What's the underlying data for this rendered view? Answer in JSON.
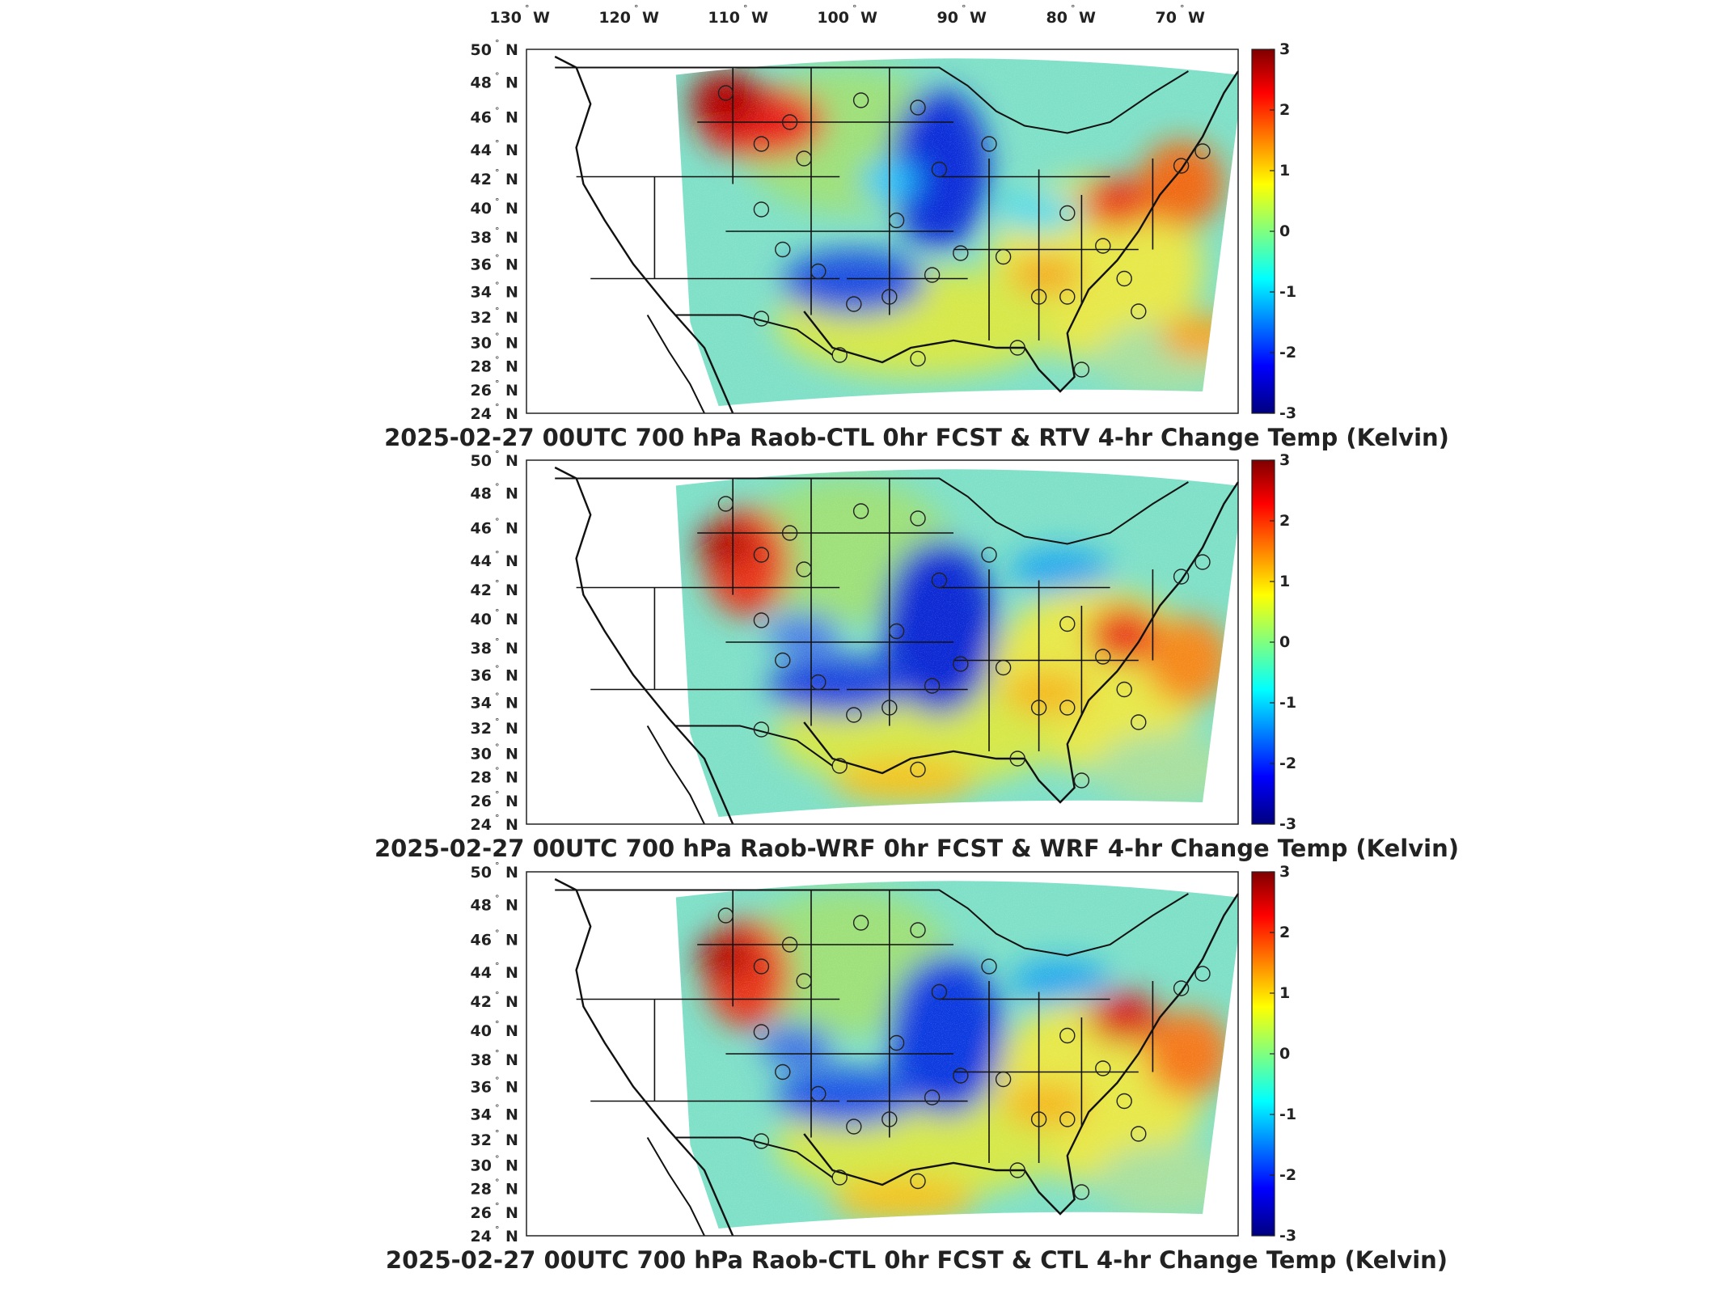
{
  "lon_labels": [
    "130",
    "120",
    "110",
    "100",
    "90",
    "80",
    "70"
  ],
  "lon_hemisphere": "W",
  "lat_labels": [
    "50",
    "48",
    "46",
    "44",
    "42",
    "40",
    "38",
    "36",
    "34",
    "32",
    "30",
    "28",
    "26",
    "24"
  ],
  "lat_hemisphere": "N",
  "degree_symbol": "°",
  "colorbar": {
    "ticks": [
      "3",
      "2",
      "1",
      "0",
      "-1",
      "-2",
      "-3"
    ],
    "colors": [
      "#7f0000",
      "#ff0000",
      "#ffff00",
      "#00ffff",
      "#0000ff",
      "#00007f"
    ]
  },
  "panels": [
    {
      "title": "2025-02-27 00UTC 700 hPa Raob-CTL 0hr FCST & RTV 4-hr Change Temp (Kelvin)",
      "variant": "rtv"
    },
    {
      "title": "2025-02-27 00UTC 700 hPa Raob-WRF 0hr FCST & WRF 4-hr Change Temp (Kelvin)",
      "variant": "wrf"
    },
    {
      "title": "2025-02-27 00UTC 700 hPa Raob-CTL 0hr FCST & CTL 4-hr Change Temp (Kelvin)",
      "variant": "ctl"
    }
  ]
}
